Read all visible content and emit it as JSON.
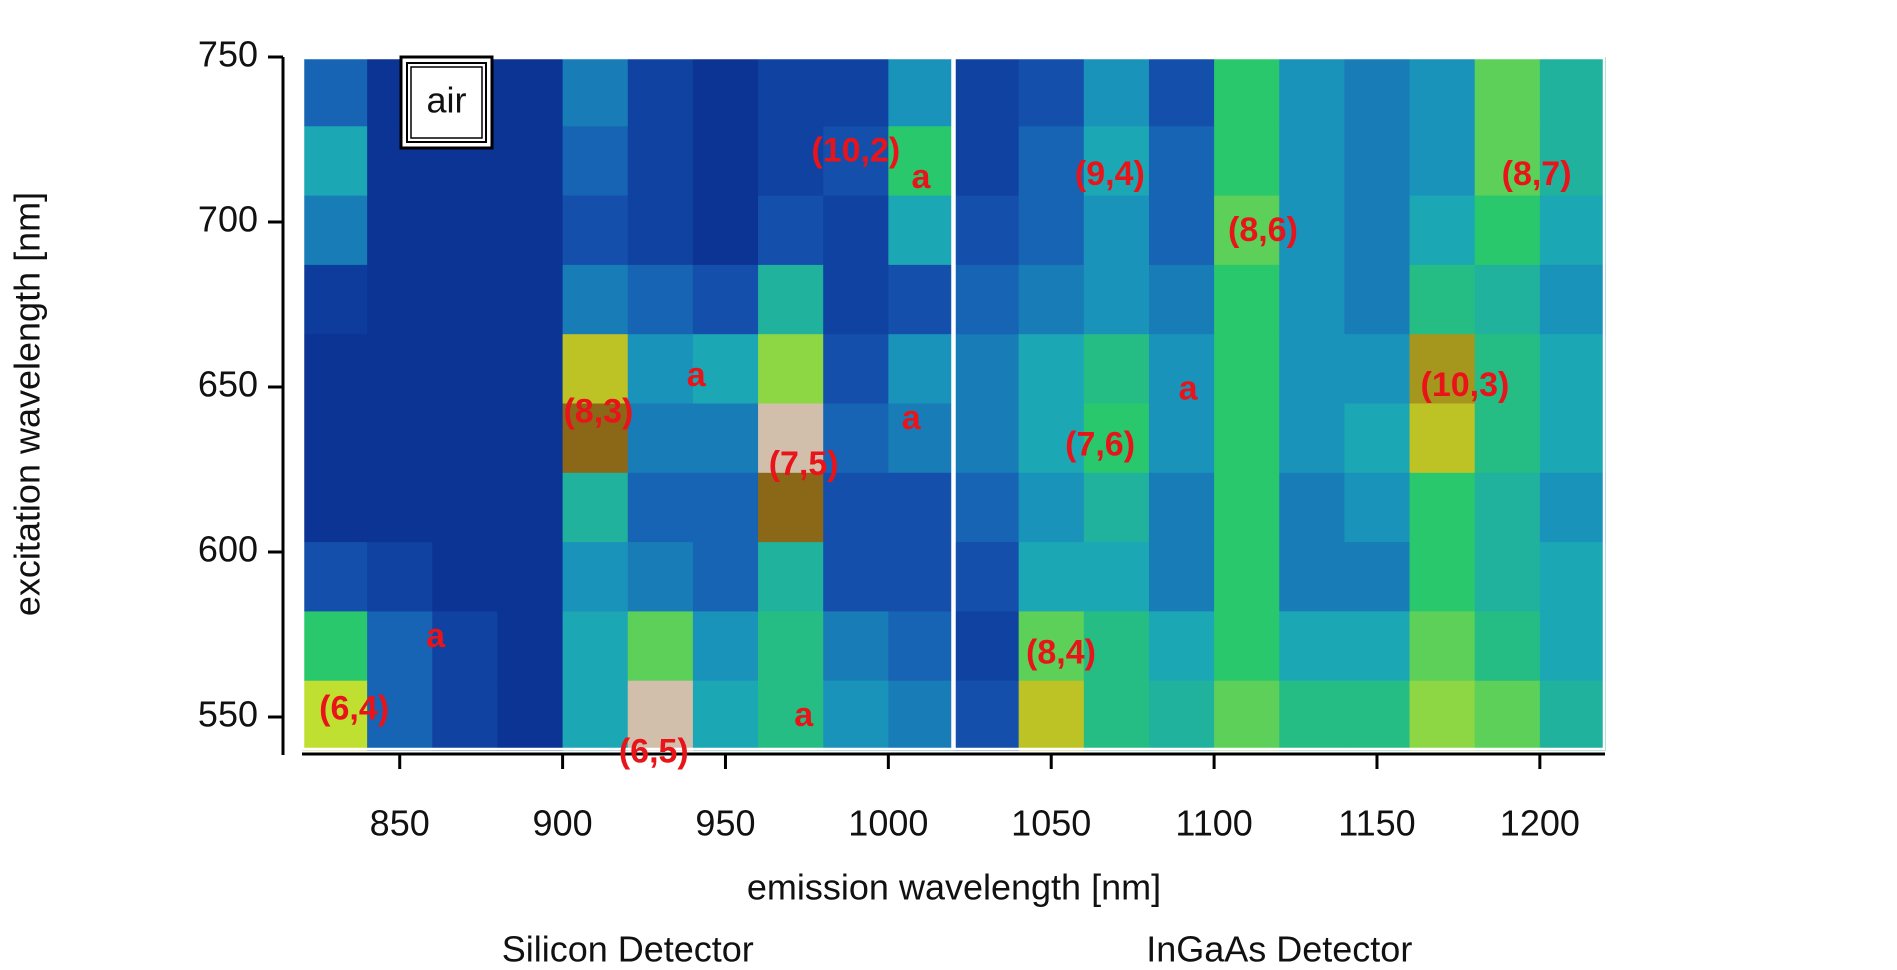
{
  "chart_data": {
    "type": "heatmap",
    "xlabel": "emission wavelength [nm]",
    "ylabel": "excitation wavelength [nm]",
    "inset_label": "air",
    "panels": [
      {
        "name": "Silicon Detector",
        "xlim": [
          820,
          1020
        ]
      },
      {
        "name": "InGaAs Detector",
        "xlim": [
          1020,
          1220
        ]
      }
    ],
    "xlim": [
      820,
      1220
    ],
    "ylim": [
      540,
      750
    ],
    "xticks": [
      850,
      900,
      950,
      1000,
      1050,
      1100,
      1150,
      1200
    ],
    "yticks": [
      550,
      600,
      650,
      700,
      750
    ],
    "colorscale": [
      "#07268a",
      "#1554b0",
      "#1ba3bd",
      "#2ac86c",
      "#cfe12a",
      "#7a4a12",
      "#f6f1ee"
    ],
    "x_edges": [
      820,
      840,
      860,
      880,
      900,
      920,
      940,
      960,
      980,
      1000,
      1020,
      1040,
      1060,
      1080,
      1100,
      1120,
      1140,
      1160,
      1180,
      1200,
      1220
    ],
    "y_edges": [
      750,
      729,
      708,
      687,
      666,
      645,
      624,
      603,
      582,
      561,
      540
    ],
    "z": [
      [
        0.2,
        0.05,
        0.05,
        0.05,
        0.25,
        0.1,
        0.05,
        0.1,
        0.1,
        0.3,
        0.1,
        0.15,
        0.3,
        0.15,
        0.5,
        0.3,
        0.25,
        0.3,
        0.55,
        0.4
      ],
      [
        0.35,
        0.05,
        0.05,
        0.05,
        0.2,
        0.1,
        0.05,
        0.1,
        0.15,
        0.5,
        0.1,
        0.2,
        0.35,
        0.2,
        0.5,
        0.3,
        0.25,
        0.3,
        0.55,
        0.4
      ],
      [
        0.25,
        0.05,
        0.05,
        0.05,
        0.15,
        0.1,
        0.05,
        0.15,
        0.1,
        0.35,
        0.15,
        0.2,
        0.3,
        0.2,
        0.55,
        0.3,
        0.25,
        0.35,
        0.5,
        0.35
      ],
      [
        0.08,
        0.05,
        0.05,
        0.05,
        0.25,
        0.2,
        0.15,
        0.4,
        0.1,
        0.15,
        0.2,
        0.25,
        0.3,
        0.25,
        0.5,
        0.3,
        0.25,
        0.45,
        0.4,
        0.3
      ],
      [
        0.05,
        0.05,
        0.05,
        0.05,
        0.7,
        0.3,
        0.35,
        0.6,
        0.15,
        0.3,
        0.25,
        0.35,
        0.45,
        0.3,
        0.5,
        0.3,
        0.3,
        0.75,
        0.45,
        0.35
      ],
      [
        0.05,
        0.05,
        0.05,
        0.05,
        0.8,
        0.25,
        0.25,
        0.95,
        0.2,
        0.25,
        0.25,
        0.35,
        0.5,
        0.3,
        0.5,
        0.3,
        0.35,
        0.7,
        0.45,
        0.35
      ],
      [
        0.05,
        0.05,
        0.05,
        0.05,
        0.4,
        0.2,
        0.2,
        0.8,
        0.15,
        0.15,
        0.2,
        0.3,
        0.4,
        0.25,
        0.5,
        0.25,
        0.3,
        0.5,
        0.4,
        0.3
      ],
      [
        0.15,
        0.1,
        0.05,
        0.05,
        0.3,
        0.25,
        0.2,
        0.4,
        0.15,
        0.15,
        0.15,
        0.35,
        0.35,
        0.25,
        0.5,
        0.25,
        0.25,
        0.5,
        0.4,
        0.35
      ],
      [
        0.5,
        0.2,
        0.1,
        0.05,
        0.35,
        0.55,
        0.3,
        0.45,
        0.25,
        0.2,
        0.1,
        0.55,
        0.45,
        0.35,
        0.5,
        0.35,
        0.35,
        0.55,
        0.45,
        0.35
      ],
      [
        0.65,
        0.2,
        0.1,
        0.05,
        0.35,
        0.95,
        0.35,
        0.45,
        0.3,
        0.25,
        0.15,
        0.7,
        0.45,
        0.4,
        0.55,
        0.45,
        0.45,
        0.6,
        0.55,
        0.4
      ]
    ],
    "annotation_color": "#e8141a",
    "annotations": [
      {
        "text": "(10,2)",
        "x": 990,
        "y": 721
      },
      {
        "text": "a",
        "x": 1010,
        "y": 713
      },
      {
        "text": "(9,4)",
        "x": 1068,
        "y": 714
      },
      {
        "text": "(8,7)",
        "x": 1199,
        "y": 714
      },
      {
        "text": "(8,6)",
        "x": 1115,
        "y": 697
      },
      {
        "text": "(8,3)",
        "x": 911,
        "y": 642
      },
      {
        "text": "a",
        "x": 941,
        "y": 653
      },
      {
        "text": "a",
        "x": 1007,
        "y": 640
      },
      {
        "text": "(10,3)",
        "x": 1177,
        "y": 650
      },
      {
        "text": "a",
        "x": 1092,
        "y": 649
      },
      {
        "text": "(7,6)",
        "x": 1065,
        "y": 632
      },
      {
        "text": "(7,5)",
        "x": 974,
        "y": 626
      },
      {
        "text": "(8,4)",
        "x": 1053,
        "y": 569
      },
      {
        "text": "a",
        "x": 861,
        "y": 574
      },
      {
        "text": "(6,4)",
        "x": 836,
        "y": 552
      },
      {
        "text": "(6,5)",
        "x": 928,
        "y": 539
      },
      {
        "text": "a",
        "x": 974,
        "y": 550
      }
    ]
  }
}
